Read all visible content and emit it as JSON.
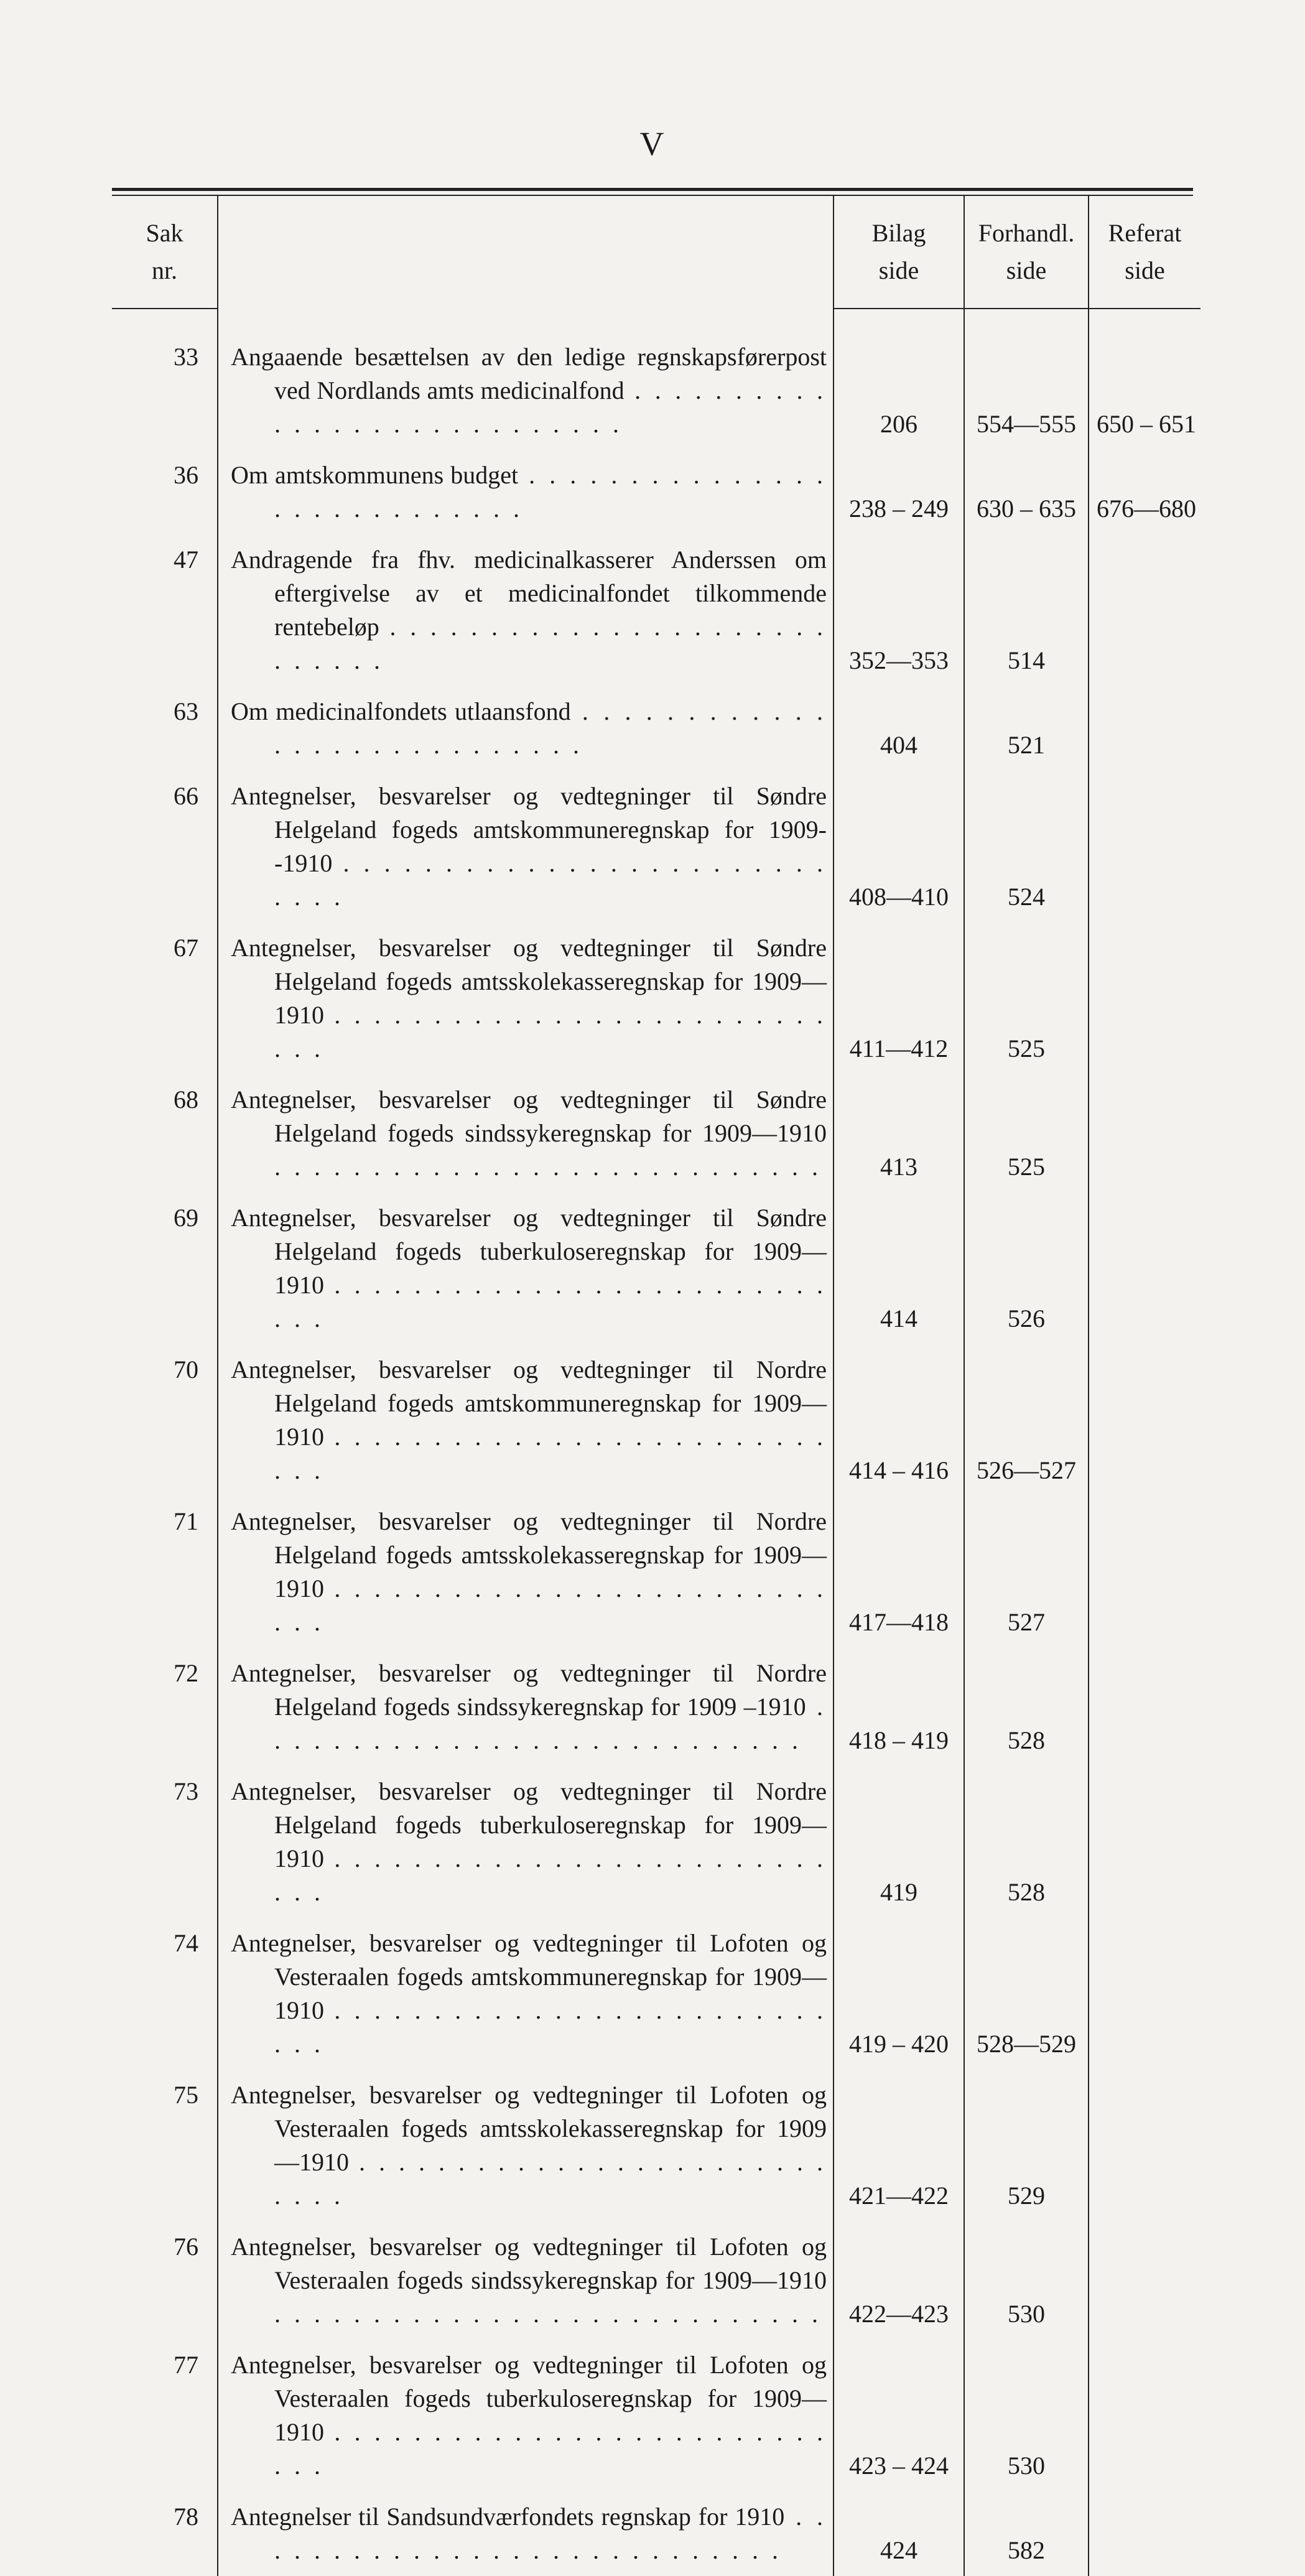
{
  "page_number": "V",
  "headers": {
    "sak_l1": "Sak",
    "sak_l2": "nr.",
    "bilag_l1": "Bilag",
    "bilag_l2": "side",
    "forhandl_l1": "Forhandl.",
    "forhandl_l2": "side",
    "referat_l1": "Referat",
    "referat_l2": "side"
  },
  "rows": [
    {
      "nr": "33",
      "text": "Angaaende besættelsen av den ledige regnskaps­førerpost ved Nordlands amts medicinalfond",
      "bilag": "206",
      "forh": "554—555",
      "ref": "650 – 651"
    },
    {
      "nr": "36",
      "text": "Om amtskommunens budget",
      "bilag": "238 – 249",
      "forh": "630 – 635",
      "ref": "676—680"
    },
    {
      "nr": "47",
      "text": "Andragende fra fhv. medicinalkasserer Anderssen om eftergivelse av et medicinalfondet tilkom­mende rentebeløp",
      "bilag": "352—353",
      "forh": "514",
      "ref": ""
    },
    {
      "nr": "63",
      "text": "Om medicinalfondets utlaansfond",
      "bilag": "404",
      "forh": "521",
      "ref": ""
    },
    {
      "nr": "66",
      "text": "Antegnelser, besvarelser og vedtegninger til Søn­dre Helgeland fogeds amtskommuneregnskap for 1909--1910",
      "bilag": "408—410",
      "forh": "524",
      "ref": ""
    },
    {
      "nr": "67",
      "text": "Antegnelser, besvarelser og vedtegninger til Søn­dre Helgeland fogeds amtsskolekasseregnskap for 1909—1910",
      "bilag": "411—412",
      "forh": "525",
      "ref": ""
    },
    {
      "nr": "68",
      "text": "Antegnelser, besvarelser og vedtegninger til Søn­dre Helgeland fogeds sindssykeregnskap for 1909—1910",
      "bilag": "413",
      "forh": "525",
      "ref": ""
    },
    {
      "nr": "69",
      "text": "Antegnelser, besvarelser og vedtegninger til Søn­dre Helgeland fogeds tuberkuloseregnskap for 1909—1910",
      "bilag": "414",
      "forh": "526",
      "ref": ""
    },
    {
      "nr": "70",
      "text": "Antegnelser, besvarelser og vedtegninger til Nor­dre Helgeland fogeds amtskommuneregnskap for 1909—1910",
      "bilag": "414 – 416",
      "forh": "526—527",
      "ref": ""
    },
    {
      "nr": "71",
      "text": "Antegnelser, besvarelser og vedtegninger til Nor­dre Helgeland fogeds amtsskolekasseregnskap for 1909—1910",
      "bilag": "417—418",
      "forh": "527",
      "ref": ""
    },
    {
      "nr": "72",
      "text": "Antegnelser, besvarelser og vedtegninger til Nor­dre Helgeland fogeds sindssykeregnskap for 1909 –1910",
      "bilag": "418 – 419",
      "forh": "528",
      "ref": ""
    },
    {
      "nr": "73",
      "text": "Antegnelser, besvarelser og vedtegninger til Nor­dre Helgeland fogeds tuberkuloseregnskap for 1909—1910",
      "bilag": "419",
      "forh": "528",
      "ref": ""
    },
    {
      "nr": "74",
      "text": "Antegnelser, besvarelser og vedtegninger til Lo­foten og Vesteraalen fogeds amtskommune­regnskap for 1909—1910",
      "bilag": "419 – 420",
      "forh": "528—529",
      "ref": ""
    },
    {
      "nr": "75",
      "text": "Antegnelser, besvarelser og vedtegninger til Lo­foten og Vesteraalen fogeds amtsskolekasse­regnskap for 1909—1910",
      "bilag": "421—422",
      "forh": "529",
      "ref": ""
    },
    {
      "nr": "76",
      "text": "Antegnelser, besvarelser og vedtegninger til Lo­foten og Vesteraalen fogeds sindssykeregnskap for 1909—1910",
      "bilag": "422—423",
      "forh": "530",
      "ref": ""
    },
    {
      "nr": "77",
      "text": "Antegnelser, besvarelser og vedtegninger til Lo­foten og Vesteraalen fogeds tuberkuloseregn­skap for 1909—1910",
      "bilag": "423 – 424",
      "forh": "530",
      "ref": ""
    },
    {
      "nr": "78",
      "text": "Antegnelser til Sandsundværfondets regnskap for 1910",
      "bilag": "424",
      "forh": "582",
      "ref": ""
    }
  ]
}
